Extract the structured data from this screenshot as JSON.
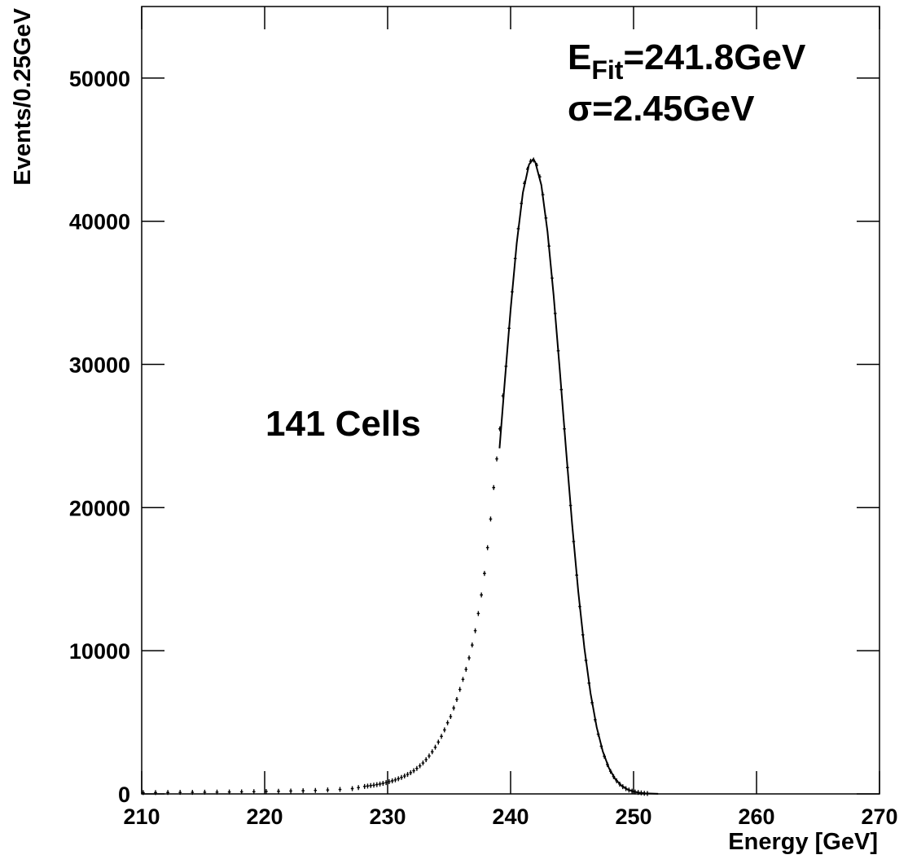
{
  "chart_data": {
    "type": "scatter",
    "xlabel": "Energy [GeV]",
    "ylabel": "Events/0.25GeV",
    "annotations": {
      "fit_energy": {
        "symbol": "E",
        "subscript": "Fit",
        "text": "=241.8GeV"
      },
      "sigma": "σ=2.45GeV",
      "cells": "141 Cells"
    },
    "xlim": [
      210,
      270
    ],
    "xticks": [
      210,
      220,
      230,
      240,
      250,
      260,
      270
    ],
    "ylim": [
      0,
      55000
    ],
    "yticks": [
      0,
      10000,
      20000,
      30000,
      40000,
      50000
    ],
    "grid": false,
    "series": [
      {
        "color": "#000000",
        "x": [
          210.125,
          211.125,
          212.125,
          213.125,
          214.125,
          215.125,
          216.125,
          217.125,
          218.125,
          219.125,
          220.125,
          221.125,
          222.125,
          223.125,
          224.125,
          225.125,
          226.125,
          227.125,
          227.625,
          228.125,
          228.375,
          228.625,
          228.875,
          229.125,
          229.375,
          229.625,
          229.875,
          230.125,
          230.375,
          230.625,
          230.875,
          231.125,
          231.375,
          231.625,
          231.875,
          232.125,
          232.375,
          232.625,
          232.875,
          233.125,
          233.375,
          233.625,
          233.875,
          234.125,
          234.375,
          234.625,
          234.875,
          235.125,
          235.375,
          235.625,
          235.875,
          236.125,
          236.375,
          236.625,
          236.875,
          237.125,
          237.375,
          237.625,
          237.875,
          238.125,
          238.375,
          238.625,
          238.875,
          239.125,
          239.375,
          239.625,
          239.875,
          240.125,
          240.375,
          240.625,
          240.875,
          241.125,
          241.375,
          241.625,
          241.875,
          242.125,
          242.375,
          242.625,
          242.875,
          243.125,
          243.375,
          243.625,
          243.875,
          244.125,
          244.375,
          244.625,
          244.875,
          245.125,
          245.375,
          245.625,
          245.875,
          246.125,
          246.375,
          246.625,
          246.875,
          247.125,
          247.375,
          247.625,
          247.875,
          248.125,
          248.375,
          248.625,
          248.875,
          249.125,
          249.375,
          249.625,
          249.875,
          250.125,
          250.375,
          250.625,
          250.875,
          251.125
        ],
        "values": [
          90,
          95,
          100,
          105,
          110,
          120,
          125,
          135,
          145,
          155,
          170,
          185,
          200,
          220,
          245,
          275,
          310,
          370,
          440,
          520,
          550,
          580,
          610,
          650,
          690,
          740,
          790,
          850,
          910,
          980,
          1060,
          1150,
          1250,
          1360,
          1480,
          1620,
          1780,
          1960,
          2160,
          2390,
          2650,
          2940,
          3260,
          3620,
          4020,
          4470,
          4970,
          5400,
          6000,
          6600,
          7300,
          8000,
          8700,
          9500,
          10400,
          11400,
          12600,
          13900,
          15400,
          17200,
          19200,
          21400,
          23400,
          25500,
          27800,
          29870,
          32520,
          35070,
          37400,
          39480,
          41250,
          42650,
          43640,
          44190,
          44280,
          43910,
          43100,
          41860,
          40230,
          38270,
          36030,
          33560,
          30950,
          28240,
          25500,
          22790,
          20150,
          17630,
          15280,
          13090,
          11110,
          9330,
          7740,
          6370,
          5180,
          4170,
          3330,
          2630,
          2050,
          1580,
          1210,
          915,
          685,
          507,
          372,
          270,
          194,
          137,
          97,
          68,
          46,
          31
        ]
      }
    ],
    "fit": {
      "color": "#000000",
      "x": [
        239.1,
        239.5,
        240,
        240.5,
        241,
        241.5,
        241.8,
        242,
        242.5,
        243,
        243.5,
        244,
        244.5,
        245,
        245.5,
        246,
        246.5,
        247,
        247.5,
        248,
        248.5,
        249,
        249.5,
        250,
        250.5,
        251,
        252
      ],
      "values": [
        24140,
        28510,
        33820,
        38480,
        42000,
        43970,
        44300,
        44150,
        42530,
        39290,
        34820,
        29600,
        24140,
        18880,
        14160,
        10190,
        7030,
        4660,
        2960,
        1800,
        1050,
        590,
        317,
        164,
        81,
        38,
        8
      ]
    }
  }
}
